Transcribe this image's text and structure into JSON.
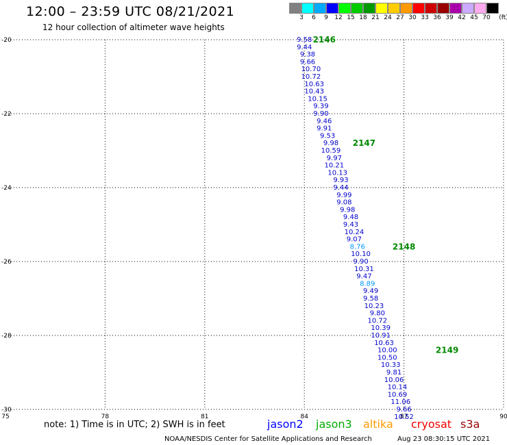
{
  "header": {
    "title": "12:00 – 23:59 UTC 08/21/2021",
    "subtitle": "12 hour collection of altimeter wave heights"
  },
  "colorbar": {
    "unit_label": "(ft)",
    "bins": [
      {
        "label": "3",
        "color": "#808080"
      },
      {
        "label": "6",
        "color": "#00ffff"
      },
      {
        "label": "9",
        "color": "#00aaff"
      },
      {
        "label": "12",
        "color": "#0000ff"
      },
      {
        "label": "15",
        "color": "#00ff00"
      },
      {
        "label": "18",
        "color": "#00cc00"
      },
      {
        "label": "21",
        "color": "#009900"
      },
      {
        "label": "24",
        "color": "#ffff00"
      },
      {
        "label": "27",
        "color": "#ffcc00"
      },
      {
        "label": "30",
        "color": "#ff9900"
      },
      {
        "label": "33",
        "color": "#ff0000"
      },
      {
        "label": "36",
        "color": "#cc0000"
      },
      {
        "label": "39",
        "color": "#990000"
      },
      {
        "label": "42",
        "color": "#aa00aa"
      },
      {
        "label": "45",
        "color": "#ccaaff"
      },
      {
        "label": "70",
        "color": "#ffaaee"
      },
      {
        "label": "",
        "color": "#000000"
      }
    ]
  },
  "map": {
    "lon_range": [
      75,
      90
    ],
    "lat_range": [
      -30,
      -20
    ],
    "x_ticks": [
      {
        "value": 75,
        "label": "75"
      },
      {
        "value": 78,
        "label": "78"
      },
      {
        "value": 81,
        "label": "81"
      },
      {
        "value": 84,
        "label": "84"
      },
      {
        "value": 87,
        "label": "87"
      },
      {
        "value": 90,
        "label": "90"
      }
    ],
    "y_ticks": [
      {
        "value": -20,
        "label": "-20"
      },
      {
        "value": -22,
        "label": "-22"
      },
      {
        "value": -24,
        "label": "-24"
      },
      {
        "value": -26,
        "label": "-26"
      },
      {
        "value": -28,
        "label": "-28"
      },
      {
        "value": -30,
        "label": "-30"
      }
    ],
    "grid": true
  },
  "observations": [
    {
      "lon": 84.0,
      "lat": -20.0,
      "value": "9.58",
      "color": "#0000cc"
    },
    {
      "lon": 84.0,
      "lat": -20.2,
      "value": "9.44",
      "color": "#0000cc"
    },
    {
      "lon": 84.1,
      "lat": -20.4,
      "value": "9.38",
      "color": "#0000cc"
    },
    {
      "lon": 84.1,
      "lat": -20.6,
      "value": "9.66",
      "color": "#0000cc"
    },
    {
      "lon": 84.2,
      "lat": -20.8,
      "value": "10.70",
      "color": "#0000cc"
    },
    {
      "lon": 84.2,
      "lat": -21.0,
      "value": "10.72",
      "color": "#0000cc"
    },
    {
      "lon": 84.3,
      "lat": -21.2,
      "value": "10.63",
      "color": "#0000cc"
    },
    {
      "lon": 84.3,
      "lat": -21.4,
      "value": "10.43",
      "color": "#0000cc"
    },
    {
      "lon": 84.4,
      "lat": -21.6,
      "value": "10.15",
      "color": "#0000cc"
    },
    {
      "lon": 84.5,
      "lat": -21.8,
      "value": "9.39",
      "color": "#0000cc"
    },
    {
      "lon": 84.5,
      "lat": -22.0,
      "value": "9.90",
      "color": "#0000cc"
    },
    {
      "lon": 84.6,
      "lat": -22.2,
      "value": "9.46",
      "color": "#0000cc"
    },
    {
      "lon": 84.6,
      "lat": -22.4,
      "value": "9.91",
      "color": "#0000cc"
    },
    {
      "lon": 84.7,
      "lat": -22.6,
      "value": "9.53",
      "color": "#0000cc"
    },
    {
      "lon": 84.8,
      "lat": -22.8,
      "value": "9.98",
      "color": "#0000cc"
    },
    {
      "lon": 84.8,
      "lat": -23.0,
      "value": "10.59",
      "color": "#0000cc"
    },
    {
      "lon": 84.9,
      "lat": -23.2,
      "value": "9.97",
      "color": "#0000cc"
    },
    {
      "lon": 84.9,
      "lat": -23.4,
      "value": "10.21",
      "color": "#0000cc"
    },
    {
      "lon": 85.0,
      "lat": -23.6,
      "value": "10.13",
      "color": "#0000cc"
    },
    {
      "lon": 85.1,
      "lat": -23.8,
      "value": "9.93",
      "color": "#0000cc"
    },
    {
      "lon": 85.1,
      "lat": -24.0,
      "value": "9.44",
      "color": "#0000cc"
    },
    {
      "lon": 85.2,
      "lat": -24.2,
      "value": "9.99",
      "color": "#0000cc"
    },
    {
      "lon": 85.2,
      "lat": -24.4,
      "value": "9.08",
      "color": "#0000cc"
    },
    {
      "lon": 85.3,
      "lat": -24.6,
      "value": "9.98",
      "color": "#0000cc"
    },
    {
      "lon": 85.4,
      "lat": -24.8,
      "value": "9.48",
      "color": "#0000cc"
    },
    {
      "lon": 85.4,
      "lat": -25.0,
      "value": "9.43",
      "color": "#0000cc"
    },
    {
      "lon": 85.5,
      "lat": -25.2,
      "value": "10.24",
      "color": "#0000cc"
    },
    {
      "lon": 85.5,
      "lat": -25.4,
      "value": "9.07",
      "color": "#0000cc"
    },
    {
      "lon": 85.6,
      "lat": -25.6,
      "value": "8.76",
      "color": "#0099ff"
    },
    {
      "lon": 85.7,
      "lat": -25.8,
      "value": "10.10",
      "color": "#0000cc"
    },
    {
      "lon": 85.7,
      "lat": -26.0,
      "value": "9.90",
      "color": "#0000cc"
    },
    {
      "lon": 85.8,
      "lat": -26.2,
      "value": "10.31",
      "color": "#0000cc"
    },
    {
      "lon": 85.8,
      "lat": -26.4,
      "value": "9.47",
      "color": "#0000cc"
    },
    {
      "lon": 85.9,
      "lat": -26.6,
      "value": "8.89",
      "color": "#0099ff"
    },
    {
      "lon": 86.0,
      "lat": -26.8,
      "value": "9.49",
      "color": "#0000cc"
    },
    {
      "lon": 86.0,
      "lat": -27.0,
      "value": "9.58",
      "color": "#0000cc"
    },
    {
      "lon": 86.1,
      "lat": -27.2,
      "value": "10.23",
      "color": "#0000cc"
    },
    {
      "lon": 86.2,
      "lat": -27.4,
      "value": "9.80",
      "color": "#0000cc"
    },
    {
      "lon": 86.2,
      "lat": -27.6,
      "value": "10.72",
      "color": "#0000cc"
    },
    {
      "lon": 86.3,
      "lat": -27.8,
      "value": "10.39",
      "color": "#0000cc"
    },
    {
      "lon": 86.3,
      "lat": -28.0,
      "value": "10.91",
      "color": "#0000cc"
    },
    {
      "lon": 86.4,
      "lat": -28.2,
      "value": "10.63",
      "color": "#0000cc"
    },
    {
      "lon": 86.5,
      "lat": -28.4,
      "value": "10.00",
      "color": "#0000cc"
    },
    {
      "lon": 86.5,
      "lat": -28.6,
      "value": "10.50",
      "color": "#0000cc"
    },
    {
      "lon": 86.6,
      "lat": -28.8,
      "value": "10.33",
      "color": "#0000cc"
    },
    {
      "lon": 86.7,
      "lat": -29.0,
      "value": "9.81",
      "color": "#0000cc"
    },
    {
      "lon": 86.7,
      "lat": -29.2,
      "value": "10.06",
      "color": "#0000cc"
    },
    {
      "lon": 86.8,
      "lat": -29.4,
      "value": "10.14",
      "color": "#0000cc"
    },
    {
      "lon": 86.8,
      "lat": -29.6,
      "value": "10.69",
      "color": "#0000cc"
    },
    {
      "lon": 86.9,
      "lat": -29.8,
      "value": "11.06",
      "color": "#0000cc"
    },
    {
      "lon": 87.0,
      "lat": -30.0,
      "value": "9.66",
      "color": "#0000cc"
    },
    {
      "lon": 87.0,
      "lat": -30.2,
      "value": "10.52",
      "color": "#0000cc"
    }
  ],
  "time_markers": [
    {
      "lon": 84.6,
      "lat": -20.0,
      "label": "2146",
      "color": "#008800"
    },
    {
      "lon": 85.8,
      "lat": -22.8,
      "label": "2147",
      "color": "#008800"
    },
    {
      "lon": 87.0,
      "lat": -25.6,
      "label": "2148",
      "color": "#008800"
    },
    {
      "lon": 88.3,
      "lat": -28.4,
      "label": "2149",
      "color": "#008800"
    }
  ],
  "footer": {
    "note": "note:  1) Time is in UTC;  2) SWH is in feet",
    "satellites": [
      {
        "label": "jason2",
        "color": "#0000ff"
      },
      {
        "label": "jason3",
        "color": "#00aa00"
      },
      {
        "label": "altika",
        "color": "#ff9900"
      },
      {
        "label": "cryosat",
        "color": "#ee0000"
      },
      {
        "label": "s3a",
        "color": "#990000"
      }
    ],
    "credit": "NOAA/NESDIS Center for Satellite Applications and Research",
    "timestamp": "Aug 23 08:30:15 UTC 2021"
  }
}
